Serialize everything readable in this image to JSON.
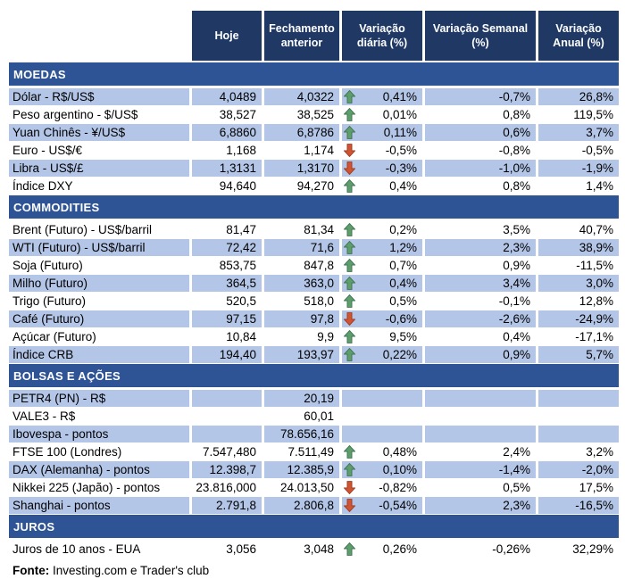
{
  "colors": {
    "header_bg": "#1F3864",
    "section_bg": "#2F5496",
    "band_bg": "#B4C6E7",
    "up_arrow": "#5D9E6C",
    "up_arrow_stroke": "#3E7250",
    "down_arrow": "#CF5433",
    "down_arrow_stroke": "#9E3A1E",
    "text": "#000000"
  },
  "icons": {
    "up": "up-arrow-icon",
    "down": "down-arrow-icon"
  },
  "chart_data": {
    "type": "table",
    "columns": [
      "Hoje",
      "Fechamento anterior",
      "Variação diária (%)",
      "Variação Semanal (%)",
      "Variação Anual (%)"
    ],
    "sections": [
      {
        "title": "MOEDAS",
        "rows": [
          {
            "label": "Dólar - R$/US$",
            "today": "4,0489",
            "prev": "4,0322",
            "trend": "up",
            "daily": "0,41%",
            "weekly": "-0,7%",
            "annual": "26,8%",
            "shaded": true
          },
          {
            "label": "Peso argentino - $/US$",
            "today": "38,527",
            "prev": "38,525",
            "trend": "up",
            "daily": "0,01%",
            "weekly": "0,8%",
            "annual": "119,5%",
            "shaded": false
          },
          {
            "label": "Yuan Chinês - ¥/US$",
            "today": "6,8860",
            "prev": "6,8786",
            "trend": "up",
            "daily": "0,11%",
            "weekly": "0,6%",
            "annual": "3,7%",
            "shaded": true
          },
          {
            "label": "Euro - US$/€",
            "today": "1,168",
            "prev": "1,174",
            "trend": "down",
            "daily": "-0,5%",
            "weekly": "-0,8%",
            "annual": "-0,5%",
            "shaded": false
          },
          {
            "label": "Libra - US$/£",
            "today": "1,3131",
            "prev": "1,3170",
            "trend": "down",
            "daily": "-0,3%",
            "weekly": "-1,0%",
            "annual": "-1,9%",
            "shaded": true
          },
          {
            "label": "Índice DXY",
            "today": "94,640",
            "prev": "94,270",
            "trend": "up",
            "daily": "0,4%",
            "weekly": "0,8%",
            "annual": "1,4%",
            "shaded": false
          }
        ]
      },
      {
        "title": "COMMODITIES",
        "rows": [
          {
            "label": "Brent (Futuro) - US$/barril",
            "today": "81,47",
            "prev": "81,34",
            "trend": "up",
            "daily": "0,2%",
            "weekly": "3,5%",
            "annual": "40,7%",
            "shaded": false
          },
          {
            "label": "WTI (Futuro) - US$/barril",
            "today": "72,42",
            "prev": "71,6",
            "trend": "up",
            "daily": "1,2%",
            "weekly": "2,3%",
            "annual": "38,9%",
            "shaded": true
          },
          {
            "label": "Soja (Futuro)",
            "today": "853,75",
            "prev": "847,8",
            "trend": "up",
            "daily": "0,7%",
            "weekly": "0,9%",
            "annual": "-11,5%",
            "shaded": false
          },
          {
            "label": "Milho (Futuro)",
            "today": "364,5",
            "prev": "363,0",
            "trend": "up",
            "daily": "0,4%",
            "weekly": "3,4%",
            "annual": "3,0%",
            "shaded": true
          },
          {
            "label": "Trigo (Futuro)",
            "today": "520,5",
            "prev": "518,0",
            "trend": "up",
            "daily": "0,5%",
            "weekly": "-0,1%",
            "annual": "12,8%",
            "shaded": false
          },
          {
            "label": "Café (Futuro)",
            "today": "97,15",
            "prev": "97,8",
            "trend": "down",
            "daily": "-0,6%",
            "weekly": "-2,6%",
            "annual": "-24,9%",
            "shaded": true
          },
          {
            "label": "Açúcar (Futuro)",
            "today": "10,84",
            "prev": "9,9",
            "trend": "up",
            "daily": "9,5%",
            "weekly": "0,4%",
            "annual": "-17,1%",
            "shaded": false
          },
          {
            "label": "Índice CRB",
            "today": "194,40",
            "prev": "193,97",
            "trend": "up",
            "daily": "0,22%",
            "weekly": "0,9%",
            "annual": "5,7%",
            "shaded": true
          }
        ]
      },
      {
        "title": "BOLSAS E AÇÕES",
        "rows": [
          {
            "label": "PETR4 (PN) - R$",
            "today": "",
            "prev": "20,19",
            "trend": "",
            "daily": "",
            "weekly": "",
            "annual": "",
            "shaded": true
          },
          {
            "label": "VALE3 - R$",
            "today": "",
            "prev": "60,01",
            "trend": "",
            "daily": "",
            "weekly": "",
            "annual": "",
            "shaded": false
          },
          {
            "label": "Ibovespa - pontos",
            "today": "",
            "prev": "78.656,16",
            "trend": "",
            "daily": "",
            "weekly": "",
            "annual": "",
            "shaded": true
          },
          {
            "label": "FTSE 100 (Londres)",
            "today": "7.547,480",
            "prev": "7.511,49",
            "trend": "up",
            "daily": "0,48%",
            "weekly": "2,4%",
            "annual": "3,2%",
            "shaded": false
          },
          {
            "label": "DAX (Alemanha) - pontos",
            "today": "12.398,7",
            "prev": "12.385,9",
            "trend": "up",
            "daily": "0,10%",
            "weekly": "-1,4%",
            "annual": "-2,0%",
            "shaded": true
          },
          {
            "label": "Nikkei 225 (Japão) - pontos",
            "today": "23.816,000",
            "prev": "24.013,50",
            "trend": "down",
            "daily": "-0,82%",
            "weekly": "0,5%",
            "annual": "17,5%",
            "shaded": false
          },
          {
            "label": "Shanghai - pontos",
            "today": "2.791,8",
            "prev": "2.806,8",
            "trend": "down",
            "daily": "-0,54%",
            "weekly": "2,3%",
            "annual": "-16,5%",
            "shaded": true
          }
        ]
      },
      {
        "title": "JUROS",
        "rows": [
          {
            "label": "Juros de 10 anos - EUA",
            "today": "3,056",
            "prev": "3,048",
            "trend": "up",
            "daily": "0,26%",
            "weekly": "-0,26%",
            "annual": "32,29%",
            "shaded": false
          }
        ]
      }
    ]
  },
  "footer": {
    "label": "Fonte:",
    "text": " Investing.com e Trader's club"
  }
}
